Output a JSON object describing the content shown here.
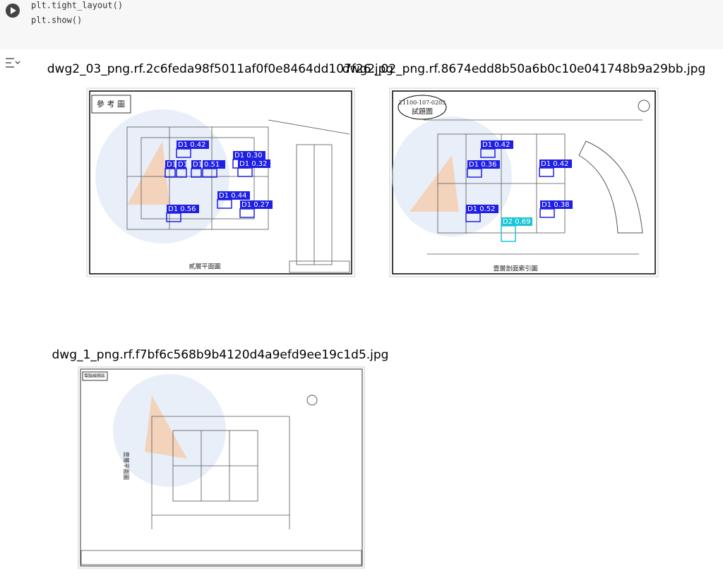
{
  "cell": {
    "code_lines": [
      "plt.tight_layout()",
      "plt.show()"
    ]
  },
  "output": {
    "figures": [
      {
        "title": "dwg2_03_png.rf.2c6feda98f5011af0f0e8464dd107f26.jpg",
        "image_labels": [
          "參 考 圖",
          "貳層平面圖"
        ],
        "detections": [
          "D1 0.42",
          "D1 0.30",
          "D1 0.32",
          "D1",
          "D1",
          "D1",
          "0.51",
          "D1 0.44",
          "D1 0.27",
          "D1 0.56"
        ]
      },
      {
        "title": "dwg2_02_png.rf.8674edd8b50a6b0c10e041748b9a29bb.jpg",
        "image_labels": [
          "21100-107-0203",
          "試題圖",
          "壹層剖面索引圖"
        ],
        "detections": [
          "D1 0.42",
          "D1 0.36",
          "D1 0.42",
          "D1 0.52",
          "D1 0.38",
          "D2 0.69"
        ]
      },
      {
        "title": "dwg_1_png.rf.f7bf6c568b9b4120d4a9efd9ee19c1d5.jpg",
        "image_labels": [
          "電腦繪圖區",
          "壹層平面圖"
        ],
        "detections": []
      }
    ]
  }
}
